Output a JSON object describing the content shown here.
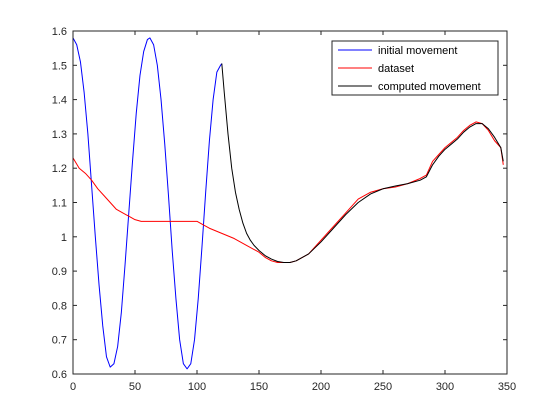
{
  "chart_data": {
    "type": "line",
    "title": "",
    "xlabel": "",
    "ylabel": "",
    "xlim": [
      0,
      350
    ],
    "ylim": [
      0.6,
      1.6
    ],
    "xticks": [
      0,
      50,
      100,
      150,
      200,
      250,
      300,
      350
    ],
    "yticks": [
      0.6,
      0.7,
      0.8,
      0.9,
      1.0,
      1.1,
      1.2,
      1.3,
      1.4,
      1.5,
      1.6
    ],
    "xtick_labels": [
      "0",
      "50",
      "100",
      "150",
      "200",
      "250",
      "300",
      "350"
    ],
    "ytick_labels": [
      "0.6",
      "0.7",
      "0.8",
      "0.9",
      "1",
      "1.1",
      "1.2",
      "1.3",
      "1.4",
      "1.5",
      "1.6"
    ],
    "grid": false,
    "legend_position": "top-right",
    "series": [
      {
        "name": "initial movement",
        "color": "#0000ff",
        "x": [
          0,
          3,
          6,
          9,
          12,
          15,
          18,
          21,
          24,
          27,
          30,
          33,
          36,
          39,
          42,
          45,
          48,
          51,
          54,
          57,
          60,
          62,
          65,
          68,
          71,
          74,
          77,
          80,
          83,
          86,
          89,
          92,
          95,
          98,
          101,
          104,
          107,
          110,
          113,
          116,
          119,
          120
        ],
        "y": [
          1.58,
          1.56,
          1.51,
          1.42,
          1.3,
          1.15,
          1.0,
          0.86,
          0.74,
          0.65,
          0.62,
          0.63,
          0.68,
          0.78,
          0.92,
          1.07,
          1.22,
          1.36,
          1.47,
          1.54,
          1.575,
          1.58,
          1.56,
          1.5,
          1.4,
          1.27,
          1.12,
          0.96,
          0.82,
          0.7,
          0.63,
          0.615,
          0.63,
          0.7,
          0.82,
          0.97,
          1.13,
          1.28,
          1.4,
          1.48,
          1.5,
          1.505
        ]
      },
      {
        "name": "dataset",
        "color": "#ff0000",
        "x": [
          0,
          5,
          10,
          15,
          20,
          25,
          30,
          35,
          40,
          45,
          50,
          55,
          60,
          70,
          80,
          90,
          100,
          105,
          110,
          120,
          130,
          140,
          150,
          155,
          160,
          165,
          170,
          175,
          180,
          190,
          200,
          210,
          220,
          230,
          240,
          250,
          260,
          270,
          280,
          285,
          290,
          295,
          300,
          305,
          310,
          315,
          320,
          325,
          330,
          335,
          340,
          345,
          347
        ],
        "y": [
          1.23,
          1.2,
          1.185,
          1.165,
          1.14,
          1.12,
          1.1,
          1.08,
          1.07,
          1.06,
          1.05,
          1.045,
          1.045,
          1.045,
          1.045,
          1.045,
          1.045,
          1.035,
          1.025,
          1.01,
          0.995,
          0.975,
          0.955,
          0.94,
          0.93,
          0.925,
          0.925,
          0.925,
          0.93,
          0.95,
          0.99,
          1.03,
          1.07,
          1.11,
          1.13,
          1.14,
          1.145,
          1.155,
          1.17,
          1.18,
          1.22,
          1.24,
          1.26,
          1.275,
          1.29,
          1.31,
          1.325,
          1.335,
          1.33,
          1.31,
          1.28,
          1.26,
          1.21
        ]
      },
      {
        "name": "computed movement",
        "color": "#000000",
        "x": [
          120,
          122,
          125,
          128,
          131,
          134,
          137,
          140,
          143,
          146,
          150,
          155,
          160,
          165,
          170,
          175,
          180,
          190,
          200,
          210,
          220,
          230,
          240,
          250,
          260,
          270,
          280,
          285,
          290,
          295,
          300,
          305,
          310,
          315,
          320,
          325,
          330,
          335,
          340,
          345,
          347
        ],
        "y": [
          1.505,
          1.42,
          1.3,
          1.2,
          1.13,
          1.08,
          1.04,
          1.01,
          0.99,
          0.975,
          0.96,
          0.945,
          0.935,
          0.928,
          0.925,
          0.925,
          0.93,
          0.95,
          0.985,
          1.025,
          1.065,
          1.1,
          1.125,
          1.14,
          1.148,
          1.155,
          1.165,
          1.175,
          1.21,
          1.235,
          1.255,
          1.27,
          1.285,
          1.305,
          1.32,
          1.33,
          1.33,
          1.315,
          1.29,
          1.26,
          1.22
        ]
      }
    ]
  }
}
